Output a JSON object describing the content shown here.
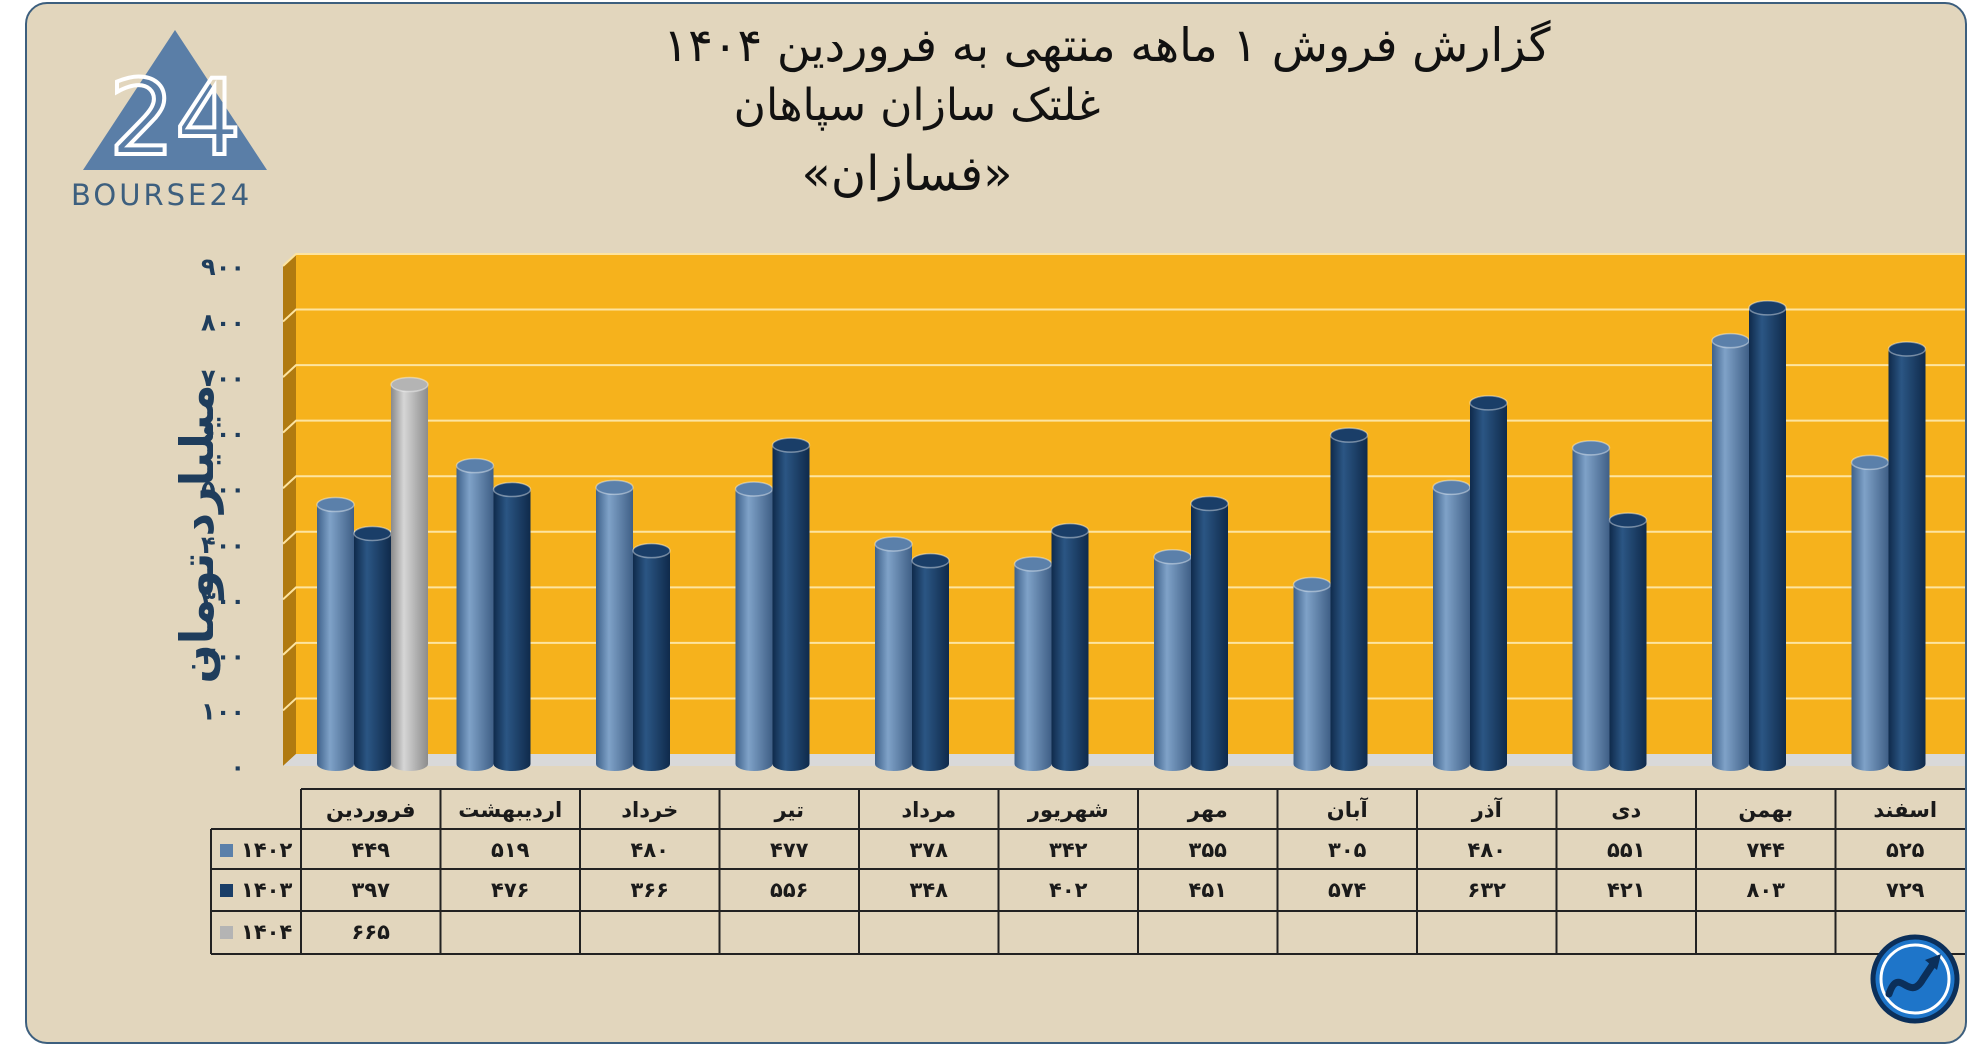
{
  "title": {
    "line1": "گزارش  فروش ۱ ماهه منتهی به فروردین ۱۴۰۴",
    "line2": "غلتک سازان سپاهان",
    "line3": "«فسازان»"
  },
  "logo": {
    "text": "BOURSE24",
    "mark": "24",
    "brand_color": "#3d5f7e"
  },
  "corner_icon": "trend-up-circle-icon",
  "colors": {
    "plot_bg": "#f6b21c",
    "plot_side": "#b07a10",
    "s1402": "#5b80aa",
    "s1403": "#1a3e68",
    "s1404": "#b4b4b4"
  },
  "chart_data": {
    "type": "bar",
    "ylabel": "میلیارد تومان",
    "ylim": [
      0,
      900
    ],
    "yticks": [
      {
        "value": 0,
        "label": "۰"
      },
      {
        "value": 100,
        "label": "۱۰۰"
      },
      {
        "value": 200,
        "label": "۲۰۰"
      },
      {
        "value": 300,
        "label": "۳۰۰"
      },
      {
        "value": 400,
        "label": "۴۰۰"
      },
      {
        "value": 500,
        "label": "۵۰۰"
      },
      {
        "value": 600,
        "label": "۶۰۰"
      },
      {
        "value": 700,
        "label": "۷۰۰"
      },
      {
        "value": 800,
        "label": "۸۰۰"
      },
      {
        "value": 900,
        "label": "۹۰۰"
      }
    ],
    "grid": true,
    "categories": [
      "فروردین",
      "اردیبهشت",
      "خرداد",
      "تیر",
      "مرداد",
      "شهریور",
      "مهر",
      "آبان",
      "آذر",
      "دی",
      "بهمن",
      "اسفند"
    ],
    "series": [
      {
        "name": "۱۴۰۲",
        "values": [
          449,
          519,
          480,
          477,
          378,
          342,
          355,
          305,
          480,
          551,
          744,
          525
        ],
        "labels": [
          "۴۴۹",
          "۵۱۹",
          "۴۸۰",
          "۴۷۷",
          "۳۷۸",
          "۳۴۲",
          "۳۵۵",
          "۳۰۵",
          "۴۸۰",
          "۵۵۱",
          "۷۴۴",
          "۵۲۵"
        ]
      },
      {
        "name": "۱۴۰۳",
        "values": [
          397,
          476,
          366,
          556,
          348,
          402,
          451,
          574,
          632,
          421,
          803,
          729
        ],
        "labels": [
          "۳۹۷",
          "۴۷۶",
          "۳۶۶",
          "۵۵۶",
          "۳۴۸",
          "۴۰۲",
          "۴۵۱",
          "۵۷۴",
          "۶۳۲",
          "۴۲۱",
          "۸۰۳",
          "۷۲۹"
        ]
      },
      {
        "name": "۱۴۰۴",
        "values": [
          665,
          null,
          null,
          null,
          null,
          null,
          null,
          null,
          null,
          null,
          null,
          null
        ],
        "labels": [
          "۶۶۵",
          "",
          "",
          "",
          "",
          "",
          "",
          "",
          "",
          "",
          "",
          ""
        ]
      }
    ]
  }
}
